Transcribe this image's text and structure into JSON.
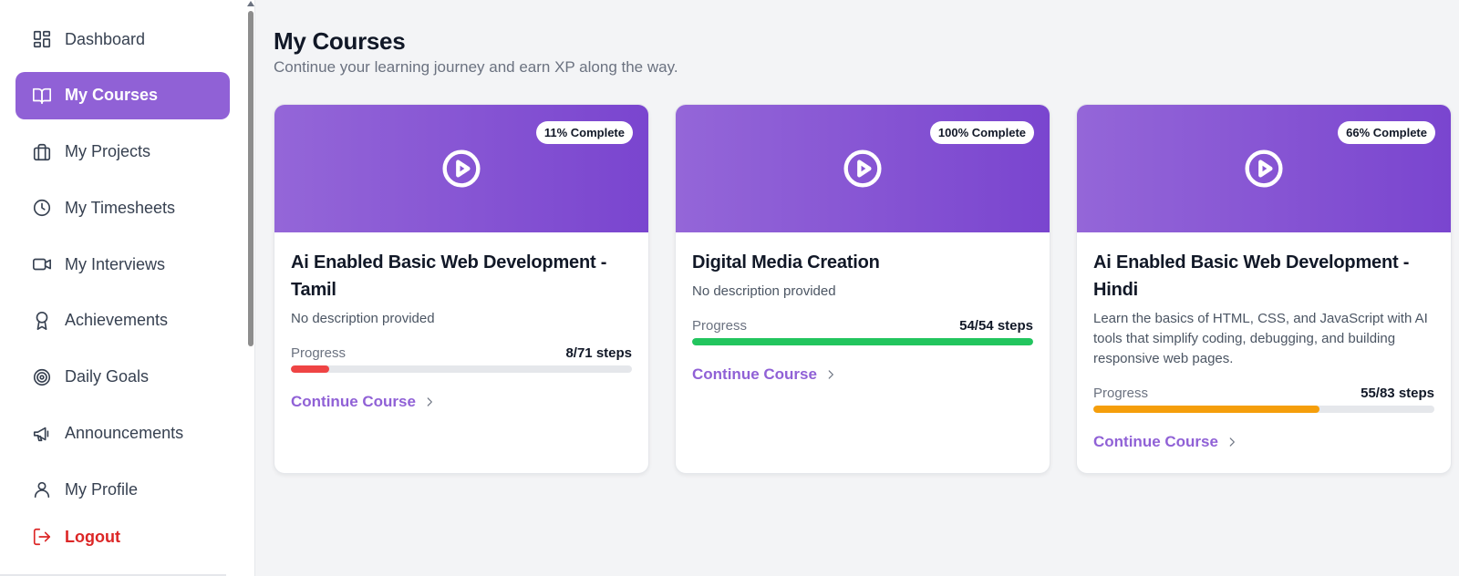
{
  "sidebar": {
    "items": [
      {
        "label": "Dashboard",
        "icon": "dashboard-icon",
        "active": false
      },
      {
        "label": "My Courses",
        "icon": "book-open-icon",
        "active": true
      },
      {
        "label": "My Projects",
        "icon": "briefcase-icon",
        "active": false
      },
      {
        "label": "My Timesheets",
        "icon": "clock-icon",
        "active": false
      },
      {
        "label": "My Interviews",
        "icon": "video-icon",
        "active": false
      },
      {
        "label": "Achievements",
        "icon": "award-icon",
        "active": false
      },
      {
        "label": "Daily Goals",
        "icon": "target-icon",
        "active": false
      },
      {
        "label": "Announcements",
        "icon": "megaphone-icon",
        "active": false
      },
      {
        "label": "My Profile",
        "icon": "user-icon",
        "active": false
      }
    ],
    "logout_label": "Logout"
  },
  "main": {
    "title": "My Courses",
    "subtitle": "Continue your learning journey and earn XP along the way."
  },
  "courses": [
    {
      "badge": "11% Complete",
      "title": "Ai Enabled Basic Web Development - Tamil",
      "description": "No description provided",
      "progress_label": "Progress",
      "steps": "8/71 steps",
      "progress_fraction": 0.113,
      "bar_color": "#ef4444",
      "continue_label": "Continue Course"
    },
    {
      "badge": "100% Complete",
      "title": "Digital Media Creation",
      "description": "No description provided",
      "progress_label": "Progress",
      "steps": "54/54 steps",
      "progress_fraction": 1.0,
      "bar_color": "#22c55e",
      "continue_label": "Continue Course"
    },
    {
      "badge": "66% Complete",
      "title": "Ai Enabled Basic Web Development - Hindi",
      "description": "Learn the basics of HTML, CSS, and JavaScript with AI tools that simplify coding, debugging, and building responsive web pages.",
      "progress_label": "Progress",
      "steps": "55/83 steps",
      "progress_fraction": 0.663,
      "bar_color": "#f59e0b",
      "continue_label": "Continue Course"
    }
  ],
  "colors": {
    "accent": "#9061d6",
    "logout": "#dc2626"
  }
}
